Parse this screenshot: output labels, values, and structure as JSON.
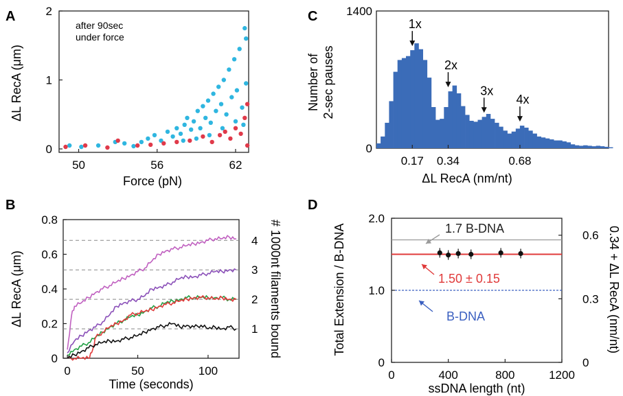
{
  "panels": {
    "A": "A",
    "B": "B",
    "C": "C",
    "D": "D"
  },
  "chart_data": [
    {
      "panel": "A",
      "type": "scatter",
      "annotation": [
        "after 90sec",
        "under force"
      ],
      "xlabel": "Force (pN)",
      "ylabel": "ΔL RecA (μm)",
      "xlim": [
        48.5,
        63
      ],
      "ylim": [
        -0.05,
        2.0
      ],
      "xticks": [
        50,
        56,
        62
      ],
      "yticks": [
        0,
        1,
        2
      ],
      "series": [
        {
          "color": "#2fb6e0",
          "points": [
            [
              49.3,
              0.05
            ],
            [
              50.2,
              0.03
            ],
            [
              51.5,
              0.05
            ],
            [
              52.8,
              0.1
            ],
            [
              53.5,
              0.08
            ],
            [
              54.2,
              0.04
            ],
            [
              54.8,
              0.1
            ],
            [
              55.3,
              0.15
            ],
            [
              55.8,
              0.2
            ],
            [
              56.3,
              0.12
            ],
            [
              56.8,
              0.25
            ],
            [
              57.2,
              0.18
            ],
            [
              57.5,
              0.3
            ],
            [
              57.8,
              0.22
            ],
            [
              58.1,
              0.35
            ],
            [
              58.3,
              0.45
            ],
            [
              58.6,
              0.28
            ],
            [
              58.8,
              0.4
            ],
            [
              59.1,
              0.55
            ],
            [
              59.3,
              0.3
            ],
            [
              59.5,
              0.62
            ],
            [
              59.7,
              0.45
            ],
            [
              59.9,
              0.7
            ],
            [
              60.1,
              0.38
            ],
            [
              60.3,
              0.8
            ],
            [
              60.5,
              0.55
            ],
            [
              60.7,
              0.9
            ],
            [
              60.9,
              0.65
            ],
            [
              61.1,
              1.0
            ],
            [
              61.3,
              0.5
            ],
            [
              61.5,
              1.15
            ],
            [
              61.7,
              0.75
            ],
            [
              61.9,
              1.3
            ],
            [
              62.1,
              0.85
            ],
            [
              62.3,
              1.45
            ],
            [
              62.5,
              0.6
            ],
            [
              62.7,
              1.75
            ],
            [
              62.8,
              0.95
            ],
            [
              62.8,
              1.6
            ],
            [
              61.0,
              0.3
            ],
            [
              60.0,
              0.2
            ],
            [
              59.0,
              0.15
            ],
            [
              58.0,
              0.12
            ],
            [
              62.0,
              0.4
            ],
            [
              62.6,
              0.35
            ]
          ]
        },
        {
          "color": "#e03a4a",
          "points": [
            [
              49.0,
              0.03
            ],
            [
              50.5,
              0.05
            ],
            [
              52.2,
              0.02
            ],
            [
              53.0,
              0.12
            ],
            [
              54.5,
              0.05
            ],
            [
              55.5,
              0.06
            ],
            [
              56.5,
              0.08
            ],
            [
              57.5,
              0.1
            ],
            [
              58.5,
              0.12
            ],
            [
              59.5,
              0.18
            ],
            [
              60.2,
              0.1
            ],
            [
              60.8,
              0.2
            ],
            [
              61.2,
              0.25
            ],
            [
              61.6,
              0.15
            ],
            [
              62.0,
              0.3
            ],
            [
              62.4,
              0.22
            ],
            [
              62.7,
              0.45
            ],
            [
              62.9,
              0.65
            ],
            [
              62.9,
              0.05
            ]
          ]
        }
      ]
    },
    {
      "panel": "B",
      "type": "line",
      "xlabel": "Time (seconds)",
      "ylabel": "ΔL RecA (μm)",
      "y2label": "# 1000nt filaments bound",
      "xlim": [
        -3,
        122
      ],
      "ylim": [
        0,
        0.8
      ],
      "xticks": [
        0,
        50,
        100
      ],
      "yticks": [
        0,
        0.2,
        0.4,
        0.6,
        0.8
      ],
      "y2ticks": [
        "1",
        "2",
        "3",
        "4"
      ],
      "y2tick_values": [
        0.17,
        0.34,
        0.51,
        0.68
      ],
      "reference_lines": [
        0.17,
        0.34,
        0.51,
        0.68
      ],
      "series": [
        {
          "color": "#c060c0",
          "x": [
            0,
            3,
            5,
            10,
            15,
            20,
            25,
            30,
            35,
            40,
            45,
            50,
            55,
            60,
            65,
            70,
            75,
            80,
            85,
            90,
            95,
            100,
            105,
            110,
            115,
            120
          ],
          "y": [
            0.05,
            0.25,
            0.3,
            0.32,
            0.35,
            0.38,
            0.4,
            0.42,
            0.44,
            0.46,
            0.48,
            0.5,
            0.52,
            0.56,
            0.6,
            0.62,
            0.63,
            0.64,
            0.65,
            0.66,
            0.67,
            0.68,
            0.69,
            0.69,
            0.7,
            0.69
          ]
        },
        {
          "color": "#8a4fb8",
          "x": [
            0,
            5,
            10,
            15,
            20,
            25,
            30,
            35,
            40,
            45,
            50,
            55,
            60,
            65,
            70,
            75,
            80,
            85,
            90,
            95,
            100,
            105,
            110,
            115,
            120
          ],
          "y": [
            0.03,
            0.1,
            0.13,
            0.16,
            0.18,
            0.21,
            0.25,
            0.3,
            0.32,
            0.33,
            0.34,
            0.36,
            0.4,
            0.41,
            0.42,
            0.44,
            0.46,
            0.47,
            0.47,
            0.48,
            0.49,
            0.5,
            0.5,
            0.51,
            0.51
          ]
        },
        {
          "color": "#22a045",
          "x": [
            0,
            5,
            10,
            15,
            20,
            25,
            30,
            35,
            40,
            45,
            50,
            55,
            60,
            65,
            70,
            75,
            80,
            85,
            90,
            95,
            100,
            105,
            110,
            115,
            120
          ],
          "y": [
            0.02,
            0.05,
            0.07,
            0.09,
            0.12,
            0.15,
            0.18,
            0.2,
            0.22,
            0.24,
            0.25,
            0.27,
            0.29,
            0.3,
            0.32,
            0.33,
            0.34,
            0.35,
            0.35,
            0.35,
            0.35,
            0.35,
            0.35,
            0.34,
            0.34
          ]
        },
        {
          "color": "#e03a3a",
          "x": [
            0,
            5,
            10,
            15,
            18,
            20,
            25,
            30,
            35,
            40,
            45,
            50,
            55,
            60,
            65,
            70,
            75,
            80,
            85,
            90,
            95,
            100,
            105,
            110,
            115,
            120
          ],
          "y": [
            0.0,
            0.0,
            0.0,
            0.0,
            0.05,
            0.12,
            0.15,
            0.18,
            0.2,
            0.22,
            0.25,
            0.26,
            0.27,
            0.28,
            0.3,
            0.31,
            0.32,
            0.33,
            0.34,
            0.35,
            0.35,
            0.35,
            0.34,
            0.35,
            0.34,
            0.34
          ]
        },
        {
          "color": "#111111",
          "x": [
            0,
            5,
            10,
            15,
            20,
            25,
            30,
            35,
            40,
            45,
            50,
            55,
            60,
            65,
            70,
            75,
            80,
            85,
            90,
            95,
            100,
            105,
            110,
            115,
            120
          ],
          "y": [
            0.0,
            0.02,
            0.04,
            0.06,
            0.08,
            0.09,
            0.1,
            0.1,
            0.11,
            0.12,
            0.13,
            0.15,
            0.17,
            0.18,
            0.19,
            0.2,
            0.18,
            0.19,
            0.18,
            0.19,
            0.17,
            0.18,
            0.17,
            0.18,
            0.17
          ]
        }
      ]
    },
    {
      "panel": "C",
      "type": "bar",
      "xlabel": "ΔL RecA (nm/nt)",
      "ylabel": [
        "Number of",
        "2-sec pauses"
      ],
      "ylim": [
        0,
        1400
      ],
      "xlim": [
        0,
        1.1
      ],
      "yticks": [
        0,
        1400
      ],
      "xticks": [
        "0.17",
        "0.34",
        "0.68"
      ],
      "xtick_values": [
        0.17,
        0.34,
        0.68
      ],
      "peak_labels": [
        {
          "text": "1x",
          "x": 0.17
        },
        {
          "text": "2x",
          "x": 0.34
        },
        {
          "text": "3x",
          "x": 0.51
        },
        {
          "text": "4x",
          "x": 0.68
        }
      ],
      "bin_width": 0.02,
      "values": [
        50,
        120,
        260,
        480,
        780,
        900,
        920,
        940,
        1000,
        1070,
        1010,
        900,
        720,
        420,
        290,
        300,
        420,
        580,
        640,
        560,
        430,
        340,
        280,
        270,
        290,
        320,
        350,
        300,
        260,
        220,
        180,
        150,
        170,
        200,
        230,
        210,
        180,
        150,
        120,
        110,
        100,
        90,
        80,
        80,
        70,
        60,
        40,
        30,
        25,
        30,
        25,
        20,
        25,
        20,
        15,
        10
      ]
    },
    {
      "panel": "D",
      "type": "scatter",
      "xlabel": "ssDNA length (nt)",
      "ylabel": "Total Extension / B-DNA",
      "y2label": "0.34 + ΔL RecA (nm/nt)",
      "xlim": [
        0,
        1200
      ],
      "ylim": [
        0,
        2.0
      ],
      "xticks": [
        0,
        400,
        800,
        1200
      ],
      "yticks": [
        "0",
        "1.0",
        "1.5",
        "2.0"
      ],
      "ytick_values": [
        0,
        1.0,
        1.5,
        2.0
      ],
      "y2ticks": [
        "0",
        "0.3",
        "0.6"
      ],
      "y2tick_values": [
        0,
        0.3,
        0.6
      ],
      "points": [
        [
          340,
          1.52
        ],
        [
          400,
          1.49
        ],
        [
          470,
          1.51
        ],
        [
          560,
          1.5
        ],
        [
          770,
          1.52
        ],
        [
          910,
          1.51
        ]
      ],
      "lines": [
        {
          "y": 1.7,
          "color": "#9a9a9a",
          "label": "1.7 B-DNA"
        },
        {
          "y": 1.5,
          "color": "#e03a3a",
          "label": "1.50 ± 0.15"
        },
        {
          "y": 1.0,
          "color": "#3a5fc0",
          "label": "B-DNA",
          "dashed": true
        }
      ]
    }
  ]
}
